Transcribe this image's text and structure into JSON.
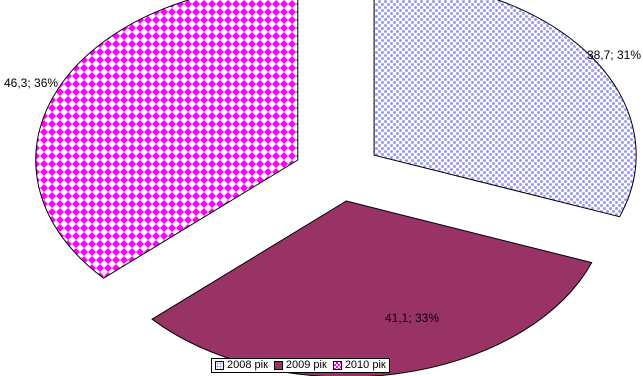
{
  "chart_data": {
    "type": "pie",
    "title": "",
    "exploded": true,
    "categories": [
      "2008 рік",
      "2009 рік",
      "2010 рік"
    ],
    "values": [
      38.7,
      41.1,
      46.3
    ],
    "percents": [
      31,
      33,
      36
    ],
    "data_labels": [
      "38,7; 31%",
      "41,1; 33%",
      "46,3; 36%"
    ],
    "colors": [
      "#9999ff",
      "#993366",
      "#ff00ff"
    ],
    "patterns": [
      "dotted",
      "solid",
      "checkered"
    ],
    "legend_position": "bottom"
  }
}
